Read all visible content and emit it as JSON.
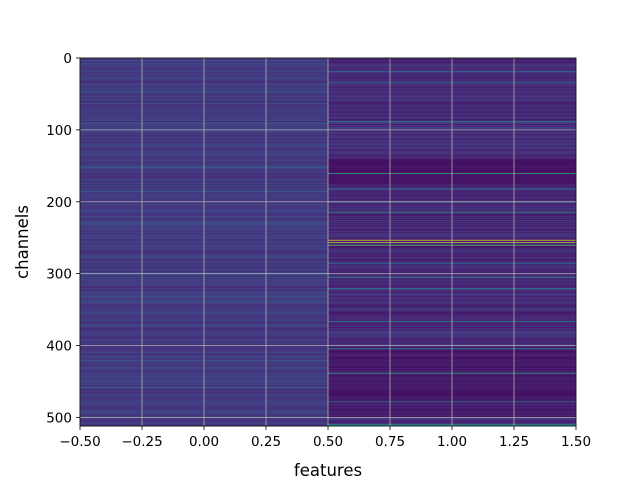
{
  "chart_data": {
    "type": "heatmap",
    "title": "",
    "xlabel": "features",
    "ylabel": "channels",
    "x_range": [
      -0.5,
      1.5
    ],
    "y_range": [
      512,
      0
    ],
    "y_inverted": true,
    "grid": true,
    "colormap": "viridis",
    "columns": 2,
    "rows": 512,
    "x_ticks": [
      "−0.50",
      "−0.25",
      "0.00",
      "0.25",
      "0.50",
      "0.75",
      "1.00",
      "1.25",
      "1.50"
    ],
    "x_tick_values": [
      -0.5,
      -0.25,
      0.0,
      0.25,
      0.5,
      0.75,
      1.0,
      1.25,
      1.5
    ],
    "y_ticks": [
      "0",
      "100",
      "200",
      "300",
      "400",
      "500"
    ],
    "y_tick_values": [
      0,
      100,
      200,
      300,
      400,
      500
    ],
    "highlights": {
      "column_0": [
        {
          "row": 47,
          "value": 0.3
        },
        {
          "row": 63,
          "value": 0.28
        },
        {
          "row": 90,
          "value": 0.3
        },
        {
          "row": 152,
          "value": 0.34
        },
        {
          "row": 185,
          "value": 0.3
        },
        {
          "row": 228,
          "value": 0.3
        },
        {
          "row": 275,
          "value": 0.36
        },
        {
          "row": 300,
          "value": 0.34
        },
        {
          "row": 338,
          "value": 0.32
        },
        {
          "row": 372,
          "value": 0.32
        },
        {
          "row": 420,
          "value": 0.3
        },
        {
          "row": 458,
          "value": 0.32
        },
        {
          "row": 500,
          "value": 0.3
        }
      ],
      "column_1": [
        {
          "row": 18,
          "value": 0.4
        },
        {
          "row": 33,
          "value": 0.46
        },
        {
          "row": 88,
          "value": 0.48
        },
        {
          "row": 160,
          "value": 0.62
        },
        {
          "row": 182,
          "value": 0.45
        },
        {
          "row": 200,
          "value": 0.52
        },
        {
          "row": 214,
          "value": 0.56
        },
        {
          "row": 253,
          "value": 0.96
        },
        {
          "row": 256,
          "value": 0.88
        },
        {
          "row": 260,
          "value": 0.74
        },
        {
          "row": 285,
          "value": 0.45
        },
        {
          "row": 305,
          "value": 0.48
        },
        {
          "row": 320,
          "value": 0.44
        },
        {
          "row": 366,
          "value": 0.5
        },
        {
          "row": 404,
          "value": 0.48
        },
        {
          "row": 438,
          "value": 0.58
        },
        {
          "row": 478,
          "value": 0.46
        },
        {
          "row": 510,
          "value": 0.56
        },
        {
          "row": 511,
          "value": 0.56
        }
      ]
    }
  }
}
